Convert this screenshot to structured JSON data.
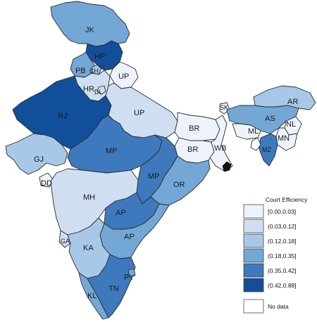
{
  "map": {
    "colors": {
      "c1": "#eef3fb",
      "c2": "#cfdff1",
      "c3": "#a7c8e6",
      "c4": "#73a8d6",
      "c5": "#3f79bd",
      "c6": "#124f9a",
      "nodata": "#ffffff"
    },
    "states": [
      {
        "id": "jk",
        "label": "JK",
        "class": "c4"
      },
      {
        "id": "hp",
        "label": "HP",
        "class": "c6"
      },
      {
        "id": "pb",
        "label": "PB",
        "class": "c4"
      },
      {
        "id": "ch",
        "label": "CH",
        "class": "c3"
      },
      {
        "id": "uk",
        "label": "UP",
        "class": "c1"
      },
      {
        "id": "hr",
        "label": "HR",
        "class": "c2"
      },
      {
        "id": "dl",
        "label": "DL",
        "class": "c2"
      },
      {
        "id": "rj",
        "label": "RJ",
        "class": "c6"
      },
      {
        "id": "up",
        "label": "UP",
        "class": "c2"
      },
      {
        "id": "br",
        "label": "BR",
        "class": "c1"
      },
      {
        "id": "jh",
        "label": "BR",
        "class": "c1"
      },
      {
        "id": "wb",
        "label": "WB",
        "class": "c1"
      },
      {
        "id": "sk",
        "label": "SK",
        "class": "c1"
      },
      {
        "id": "gj",
        "label": "GJ",
        "class": "c3"
      },
      {
        "id": "dd",
        "label": "DD",
        "class": "c1"
      },
      {
        "id": "mp",
        "label": "MP",
        "class": "c5"
      },
      {
        "id": "cg",
        "label": "MP",
        "class": "c5"
      },
      {
        "id": "or",
        "label": "OR",
        "class": "c4"
      },
      {
        "id": "mh",
        "label": "MH",
        "class": "c2"
      },
      {
        "id": "ap",
        "label": "AP",
        "class": "c5"
      },
      {
        "id": "tg",
        "label": "AP",
        "class": "c4"
      },
      {
        "id": "ga",
        "label": "GA",
        "class": "c2"
      },
      {
        "id": "ka",
        "label": "KA",
        "class": "c3"
      },
      {
        "id": "kl",
        "label": "KL",
        "class": "c4"
      },
      {
        "id": "tn",
        "label": "TN",
        "class": "c5"
      },
      {
        "id": "py",
        "label": "PY",
        "class": "c4"
      },
      {
        "id": "ar",
        "label": "AR",
        "class": "c3"
      },
      {
        "id": "as",
        "label": "AS",
        "class": "c4"
      },
      {
        "id": "ml",
        "label": "ML",
        "class": "c1"
      },
      {
        "id": "nl",
        "label": "NL",
        "class": "c1"
      },
      {
        "id": "mn",
        "label": "MN",
        "class": "c1"
      },
      {
        "id": "mz",
        "label": "MZ",
        "class": "c5"
      },
      {
        "id": "tr",
        "label": "",
        "class": "nodata"
      }
    ]
  },
  "legend": {
    "title": "Court Efficiency",
    "items": [
      {
        "label": "[0.00,0.03]",
        "class": "c1"
      },
      {
        "label": "(0.03,0.12]",
        "class": "c2"
      },
      {
        "label": "(0.12,0.18]",
        "class": "c3"
      },
      {
        "label": "(0.18,0.35]",
        "class": "c4"
      },
      {
        "label": "(0.35,0.42]",
        "class": "c5"
      },
      {
        "label": "(0.42,0.88]",
        "class": "c6"
      },
      {
        "label": "No data",
        "class": "nodata"
      }
    ]
  }
}
